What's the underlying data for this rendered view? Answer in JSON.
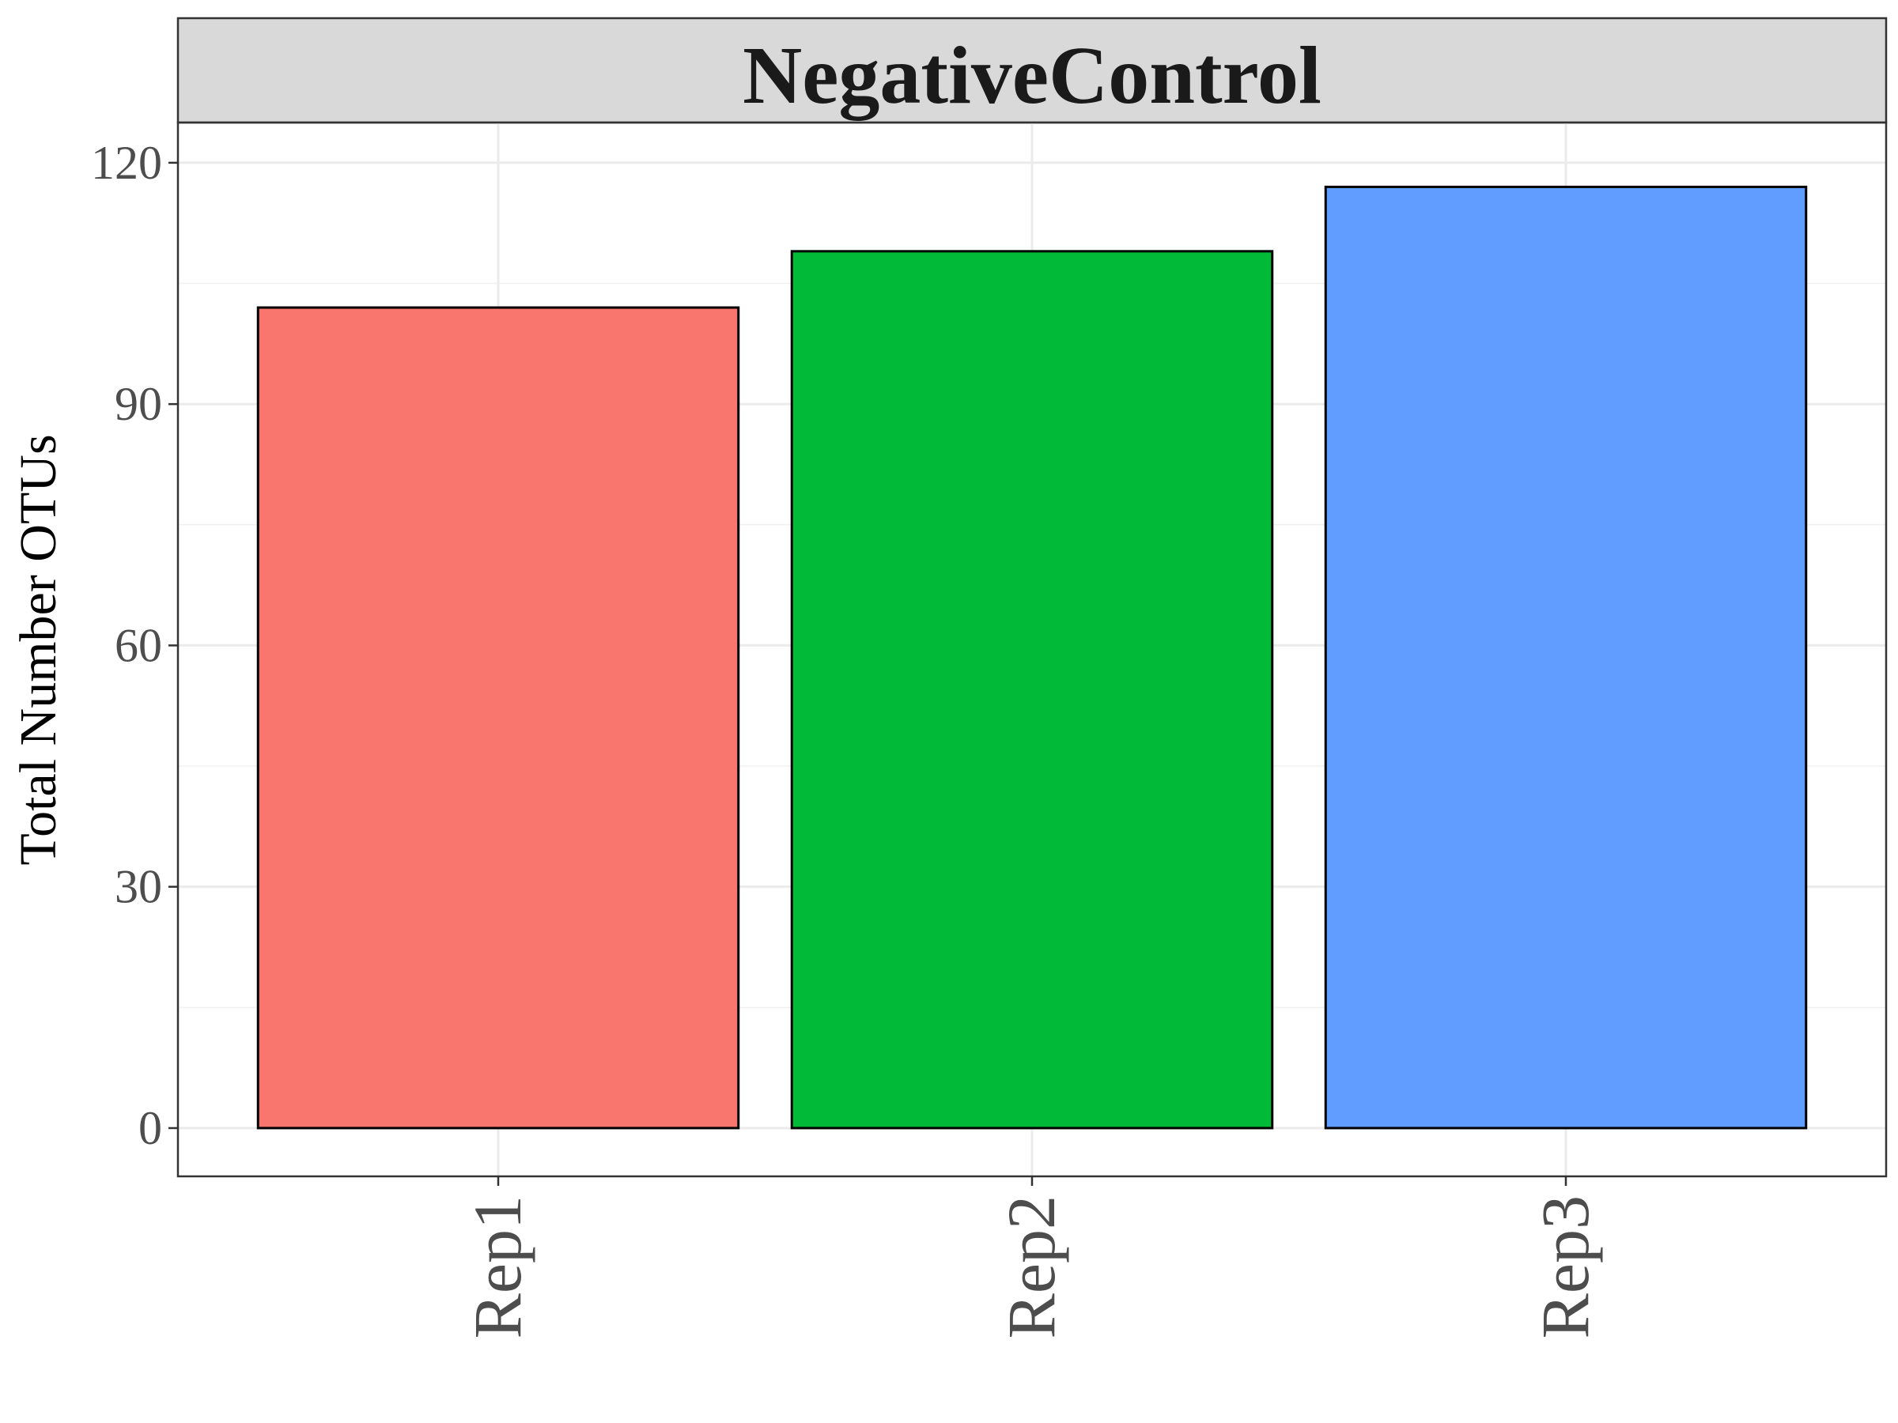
{
  "chart_data": {
    "type": "bar",
    "facet_title": "NegativeControl",
    "categories": [
      "Rep1",
      "Rep2",
      "Rep3"
    ],
    "values": [
      102,
      109,
      117
    ],
    "colors": [
      "#F8766D",
      "#00BA38",
      "#619CFF"
    ],
    "xlabel": "",
    "ylabel": "Total Number OTUs",
    "ylim": [
      -6,
      125
    ],
    "yticks": [
      0,
      30,
      60,
      90,
      120
    ],
    "y_minor_ticks": [
      15,
      45,
      75,
      105
    ],
    "grid": true,
    "legend": "none"
  }
}
